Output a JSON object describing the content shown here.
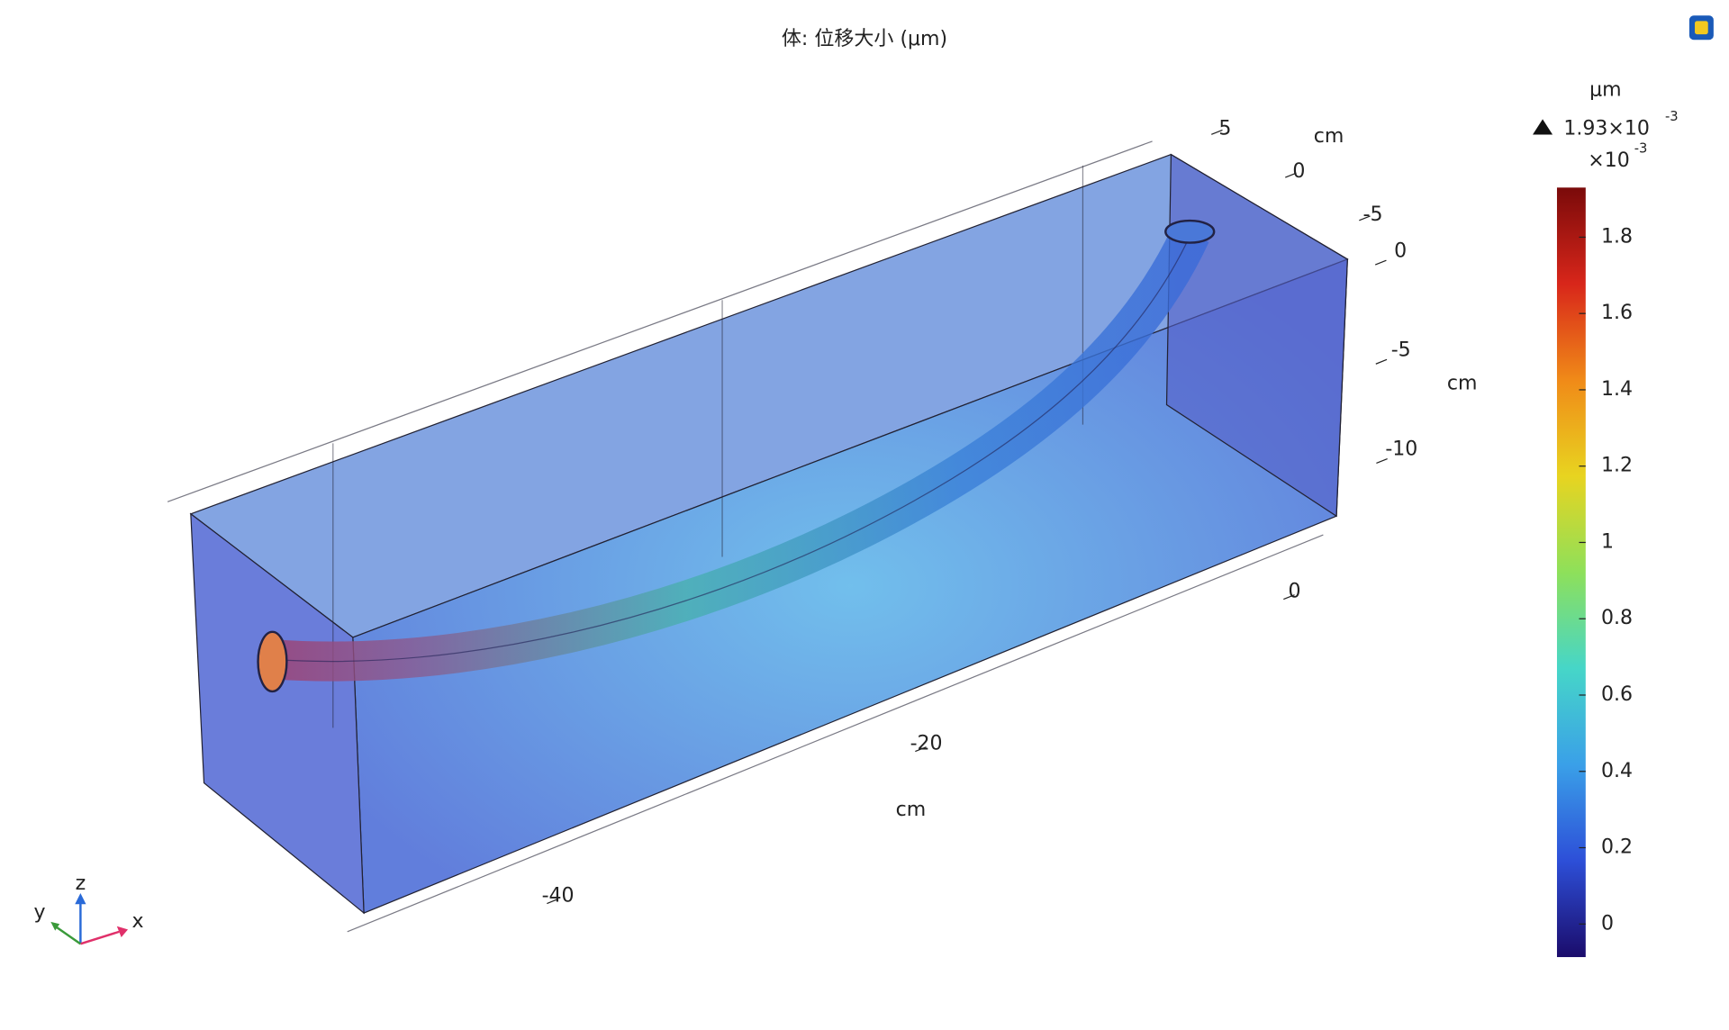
{
  "chart_data": {
    "type": "volume3d",
    "title": "体: 位移大小 (μm)",
    "axes": {
      "x": {
        "label": "cm",
        "ticks": [
          -40,
          -20,
          0
        ]
      },
      "y": {
        "label": "cm",
        "ticks": [
          5,
          0,
          -5
        ]
      },
      "z": {
        "label": "cm",
        "ticks": [
          0,
          -5,
          -10
        ]
      }
    },
    "colorbar": {
      "unit": "μm",
      "max": {
        "value": 1.93,
        "label": "1.93×10",
        "exponent": "-3"
      },
      "multiplier": "×10",
      "multiplier_exponent": "-3",
      "lim": [
        0,
        1.93
      ],
      "ticks": [
        0,
        0.2,
        0.4,
        0.6,
        0.8,
        1,
        1.2,
        1.4,
        1.6,
        1.8
      ],
      "colors": [
        "#1b0c6b",
        "#2d4fd8",
        "#3aa0e8",
        "#46d6c8",
        "#8ee05a",
        "#e8d420",
        "#f08a18",
        "#d8261a",
        "#7a0a0a"
      ]
    },
    "triad": {
      "x": "x",
      "y": "y",
      "z": "z"
    }
  }
}
